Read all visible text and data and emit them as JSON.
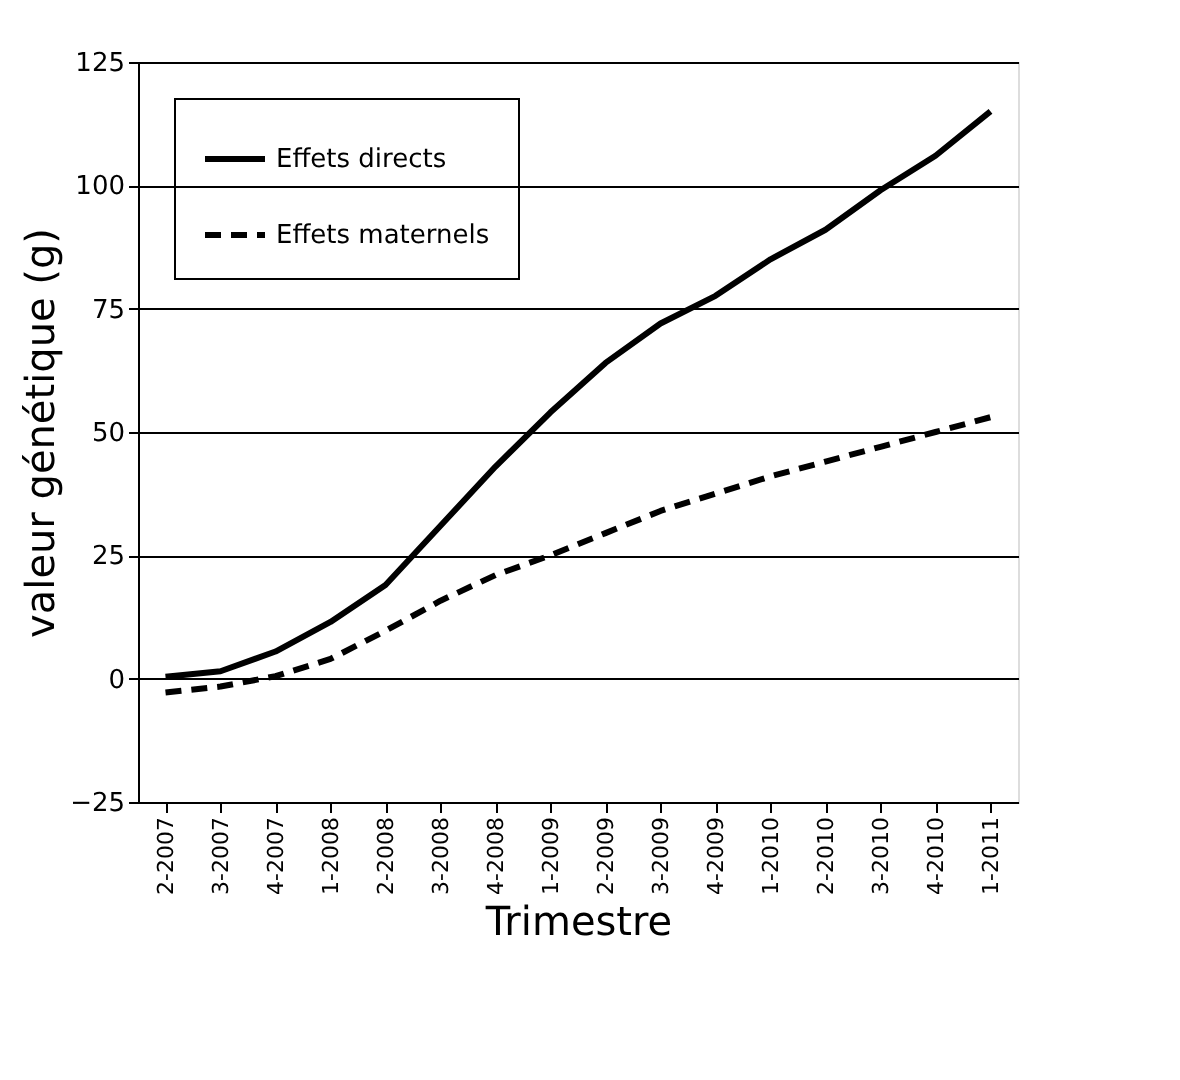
{
  "chart_data": {
    "type": "line",
    "xlabel": "Trimestre",
    "ylabel": "valeur génétique (g)",
    "categories": [
      "2-2007",
      "3-2007",
      "4-2007",
      "1-2008",
      "2-2008",
      "3-2008",
      "4-2008",
      "1-2009",
      "2-2009",
      "3-2009",
      "4-2009",
      "1-2010",
      "2-2010",
      "3-2010",
      "4-2010",
      "1-2011"
    ],
    "series": [
      {
        "name": "Effets directs",
        "color": "#000000",
        "line_style": "solid",
        "values": [
          0.4,
          1.5,
          5.5,
          11.5,
          19,
          31,
          43,
          54,
          64,
          72,
          77.6,
          85,
          91,
          99,
          106,
          115
        ]
      },
      {
        "name": "Effets maternels",
        "color": "#000000",
        "line_style": "dashed",
        "values": [
          -2.8,
          -1.6,
          0.5,
          4,
          9.7,
          15.8,
          21,
          25,
          29.5,
          34,
          37.5,
          41,
          44,
          47,
          50,
          53
        ]
      }
    ],
    "ylim": [
      -25,
      125
    ],
    "yticks": [
      -25,
      0,
      25,
      50,
      75,
      100,
      125
    ],
    "grid": "y",
    "legend": "top left",
    "marker": "none"
  }
}
